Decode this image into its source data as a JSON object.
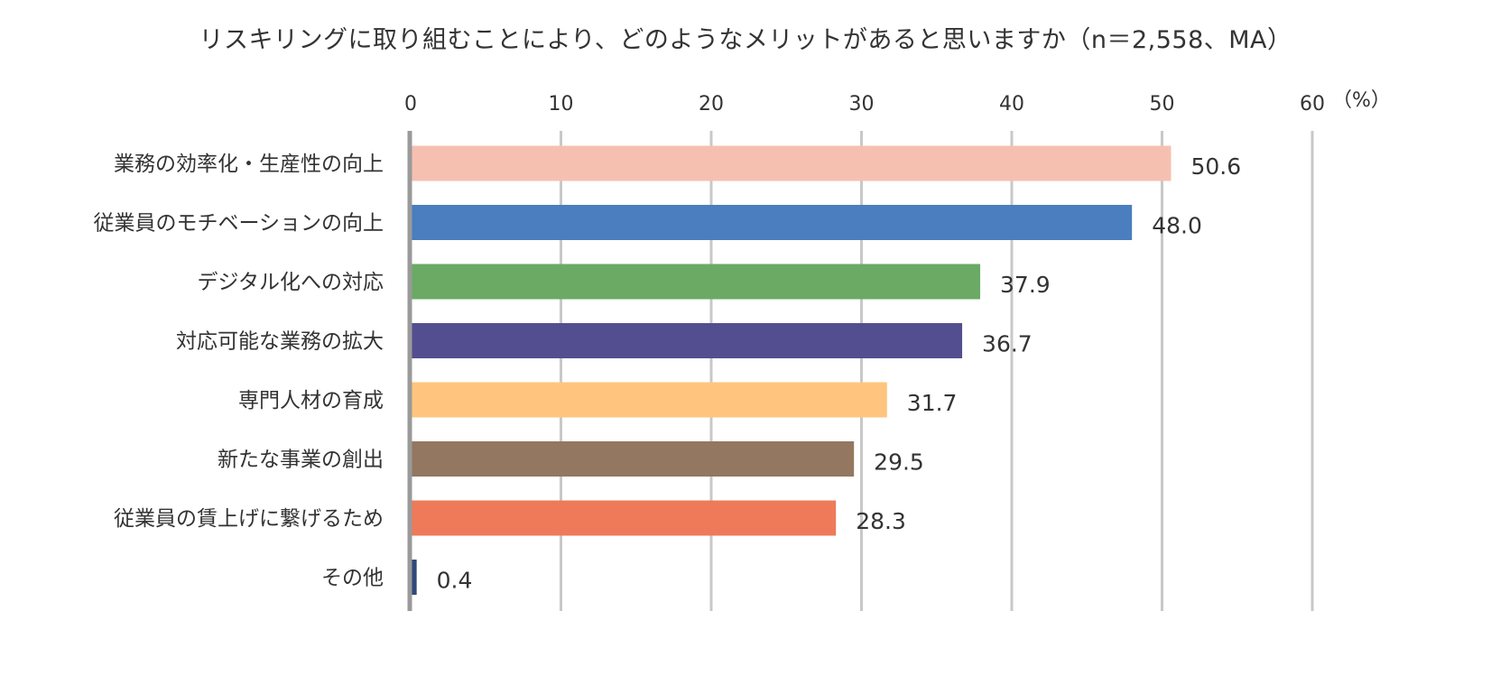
{
  "chart_data": {
    "type": "bar",
    "orientation": "horizontal",
    "title": "リスキリングに取り組むことにより、どのようなメリットがあると思いますか（n＝2,558、MA）",
    "unit_label": "（%）",
    "xlim": [
      0,
      60
    ],
    "ticks": [
      "0",
      "10",
      "20",
      "30",
      "40",
      "50",
      "60"
    ],
    "tick_values": [
      0,
      10,
      20,
      30,
      40,
      50,
      60
    ],
    "grid": true,
    "categories": [
      "業務の効率化・生産性の向上",
      "従業員のモチベーションの向上",
      "デジタル化への対応",
      "対応可能な業務の拡大",
      "専門人材の育成",
      "新たな事業の創出",
      "従業員の賃上げに繋げるため",
      "その他"
    ],
    "values": [
      50.6,
      48.0,
      37.9,
      36.7,
      31.7,
      29.5,
      28.3,
      0.4
    ],
    "value_labels": [
      "50.6",
      "48.0",
      "37.9",
      "36.7",
      "31.7",
      "29.5",
      "28.3",
      "0.4"
    ],
    "colors": [
      "#F5C0B0",
      "#4A7EBF",
      "#6AAA64",
      "#534E8F",
      "#FFC57E",
      "#937760",
      "#EE7A5A",
      "#2E4A7A"
    ]
  }
}
